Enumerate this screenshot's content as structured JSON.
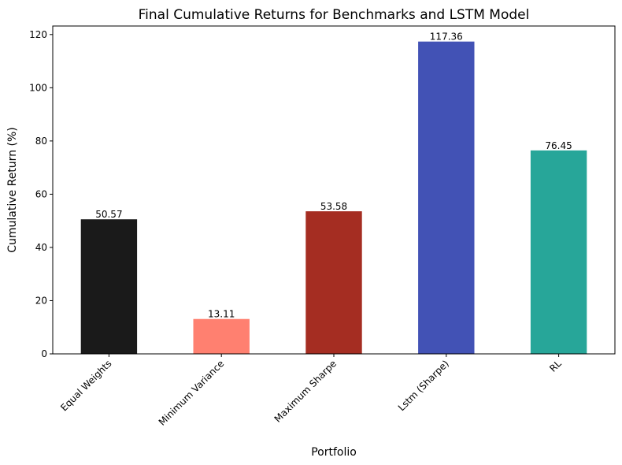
{
  "chart_data": {
    "type": "bar",
    "title": "Final Cumulative Returns for Benchmarks and LSTM Model",
    "xlabel": "Portfolio",
    "ylabel": "Cumulative Return (%)",
    "categories": [
      "Equal Weights",
      "Minimum Variance",
      "Maximum Sharpe",
      "Lstm (Sharpe)",
      "RL"
    ],
    "values": [
      50.57,
      13.11,
      53.58,
      117.36,
      76.45
    ],
    "value_labels": [
      "50.57",
      "13.11",
      "53.58",
      "117.36",
      "76.45"
    ],
    "colors": [
      "#1a1a1a",
      "#ff8070",
      "#a52d22",
      "#4252b5",
      "#27a699"
    ],
    "ylim": [
      0,
      123.2
    ],
    "yticks": [
      0,
      20,
      40,
      60,
      80,
      100,
      120
    ],
    "grid": false,
    "legend": "none"
  }
}
